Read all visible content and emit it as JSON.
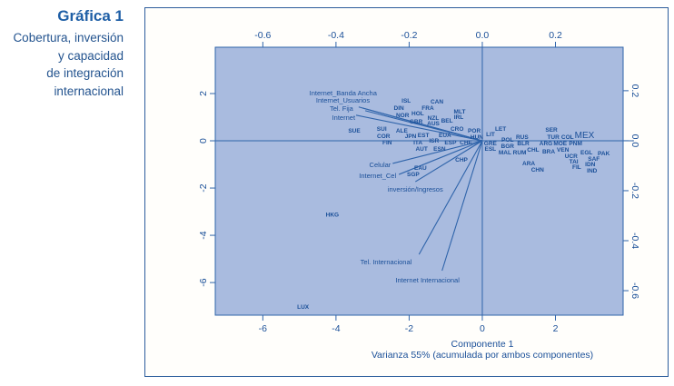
{
  "side": {
    "title": "Gráfica 1",
    "subtitle_lines": [
      "Cobertura, inversión",
      "y capacidad",
      "de integración",
      "internacional"
    ]
  },
  "colors": {
    "plot_bg": "#a9bbdf",
    "axis": "#2f64aa",
    "text": "#1a4f98",
    "title": "#1f5fa6"
  },
  "chart_data": {
    "type": "scatter",
    "subtype": "biplot",
    "xlabel": "Componente 1",
    "xlabel_sub": "Varianza 55% (acumulada por ambos componentes)",
    "ylabel": "",
    "xlim": [
      -7.3,
      3.85
    ],
    "ylim": [
      -7.38,
      3.96
    ],
    "x_ticks": [
      -6,
      -4,
      -2,
      0,
      2
    ],
    "y_ticks": [
      2,
      0,
      -2,
      -4,
      -6
    ],
    "loading_xlim": [
      -0.73,
      0.385
    ],
    "loading_ylim": [
      -0.698,
      0.374
    ],
    "loading_x_ticks": [
      "-0.6",
      "-0.4",
      "-0.2",
      "0.0",
      "0.2"
    ],
    "loading_x_tick_values": [
      -0.6,
      -0.4,
      -0.2,
      0.0,
      0.2
    ],
    "loading_y_ticks": [
      "0.2",
      "0.0",
      "-0.2",
      "-0.4",
      "-0.6"
    ],
    "loading_y_tick_values": [
      0.2,
      0.0,
      -0.2,
      -0.4,
      -0.6
    ],
    "grid": false,
    "points": [
      {
        "label": "SUE",
        "x": -3.5,
        "y": 0.46
      },
      {
        "label": "SUI",
        "x": -2.75,
        "y": 0.54
      },
      {
        "label": "COR",
        "x": -2.7,
        "y": 0.23
      },
      {
        "label": "FIN",
        "x": -2.6,
        "y": -0.04
      },
      {
        "label": "ALE",
        "x": -2.2,
        "y": 0.46
      },
      {
        "label": "ISL",
        "x": -2.08,
        "y": 1.73
      },
      {
        "label": "DIN",
        "x": -2.28,
        "y": 1.42
      },
      {
        "label": "NOR",
        "x": -2.18,
        "y": 1.12
      },
      {
        "label": "HOL",
        "x": -1.84,
        "y": 1.19
      },
      {
        "label": "GBR",
        "x": -1.81,
        "y": 0.92
      },
      {
        "label": "FRA",
        "x": -1.49,
        "y": 1.27
      },
      {
        "label": "CAN",
        "x": -1.24,
        "y": 1.54
      },
      {
        "label": "NZL",
        "x": -1.34,
        "y": 1.0
      },
      {
        "label": "AUS",
        "x": -1.34,
        "y": 0.77
      },
      {
        "label": "BEL",
        "x": -1.04,
        "y": 0.88
      },
      {
        "label": "MLT",
        "x": -0.62,
        "y": 1.27
      },
      {
        "label": "IRL",
        "x": -0.72,
        "y": 1.04
      },
      {
        "label": "JPN",
        "x": -1.96,
        "y": 0.23
      },
      {
        "label": "EST",
        "x": -1.61,
        "y": 0.27
      },
      {
        "label": "ITA",
        "x": -1.76,
        "y": -0.04
      },
      {
        "label": "AUT",
        "x": -1.66,
        "y": -0.31
      },
      {
        "label": "ISR",
        "x": -1.32,
        "y": 0.04
      },
      {
        "label": "EUA",
        "x": -1.02,
        "y": 0.27
      },
      {
        "label": "ESP",
        "x": -0.87,
        "y": -0.04
      },
      {
        "label": "CHE",
        "x": -0.52,
        "y": -0.04
      },
      {
        "label": "ESN",
        "x": -1.17,
        "y": -0.31
      },
      {
        "label": "CRO",
        "x": -0.69,
        "y": 0.46
      },
      {
        "label": "POR",
        "x": -0.22,
        "y": 0.46
      },
      {
        "label": "HUN",
        "x": -0.15,
        "y": 0.19
      },
      {
        "label": "CHP",
        "x": -0.57,
        "y": -0.77
      },
      {
        "label": "EAU",
        "x": -1.69,
        "y": -1.12
      },
      {
        "label": "SGP",
        "x": -1.89,
        "y": -1.38
      },
      {
        "label": "LIT",
        "x": 0.15,
        "y": 0.31
      },
      {
        "label": "GRE",
        "x": 0.22,
        "y": 0.0
      },
      {
        "label": "ESL",
        "x": 0.22,
        "y": -0.23
      },
      {
        "label": "LET",
        "x": 0.5,
        "y": 0.46
      },
      {
        "label": "POL",
        "x": 0.69,
        "y": 0.08
      },
      {
        "label": "BGR",
        "x": 0.69,
        "y": -0.19
      },
      {
        "label": "MAL",
        "x": 0.62,
        "y": -0.46
      },
      {
        "label": "RUS",
        "x": 1.09,
        "y": 0.19
      },
      {
        "label": "BLR",
        "x": 1.12,
        "y": -0.08
      },
      {
        "label": "RUM",
        "x": 1.02,
        "y": -0.46
      },
      {
        "label": "CHL",
        "x": 1.39,
        "y": -0.19
      },
      {
        "label": "ARG",
        "x": 1.74,
        "y": -0.08
      },
      {
        "label": "BRA",
        "x": 1.74,
        "y": -0.42
      },
      {
        "label": "SER",
        "x": 1.89,
        "y": 0.5
      },
      {
        "label": "TUR",
        "x": 1.94,
        "y": 0.19
      },
      {
        "label": "MOE",
        "x": 2.13,
        "y": -0.08
      },
      {
        "label": "VEN",
        "x": 2.13,
        "y": -0.35
      },
      {
        "label": "COL",
        "x": 2.33,
        "y": 0.12
      },
      {
        "label": "MEX",
        "x": 2.72,
        "y": 0.23,
        "highlight": true
      },
      {
        "label": "PNM",
        "x": 2.55,
        "y": -0.08
      },
      {
        "label": "UCR",
        "x": 2.43,
        "y": -0.46
      },
      {
        "label": "TAI",
        "x": 2.5,
        "y": -0.62
      },
      {
        "label": "EGL",
        "x": 2.85,
        "y": -0.46
      },
      {
        "label": "SAF",
        "x": 3.05,
        "y": -0.58
      },
      {
        "label": "PAK",
        "x": 3.32,
        "y": -0.58
      },
      {
        "label": "IDN",
        "x": 2.95,
        "y": -0.81
      },
      {
        "label": "FIL",
        "x": 2.73,
        "y": -0.92
      },
      {
        "label": "IND",
        "x": 3.0,
        "y": -1.23
      },
      {
        "label": "ARA",
        "x": 1.27,
        "y": -0.92
      },
      {
        "label": "CHN",
        "x": 1.51,
        "y": -1.12
      },
      {
        "label": "HKG",
        "x": -4.1,
        "y": -3.1
      },
      {
        "label": "LUX",
        "x": -4.9,
        "y": -7.0
      }
    ],
    "loadings": [
      {
        "label": "Internet_Banda Ancha",
        "x": -0.328,
        "y": 0.131
      },
      {
        "label": "Internet_Usuarios",
        "x": -0.32,
        "y": 0.12
      },
      {
        "label": "Tel. Fija",
        "x": -0.338,
        "y": 0.135
      },
      {
        "label": "Internet",
        "x": -0.345,
        "y": 0.102
      },
      {
        "label": "Celular",
        "x": -0.245,
        "y": -0.091
      },
      {
        "label": "Internet_Cel",
        "x": -0.228,
        "y": -0.135
      },
      {
        "label": "inversión/Ingresos",
        "x": -0.183,
        "y": -0.164
      },
      {
        "label": "Tel. Internacional",
        "x": -0.173,
        "y": -0.455
      },
      {
        "label": "Internet Internacional",
        "x": -0.11,
        "y": -0.52
      }
    ]
  }
}
